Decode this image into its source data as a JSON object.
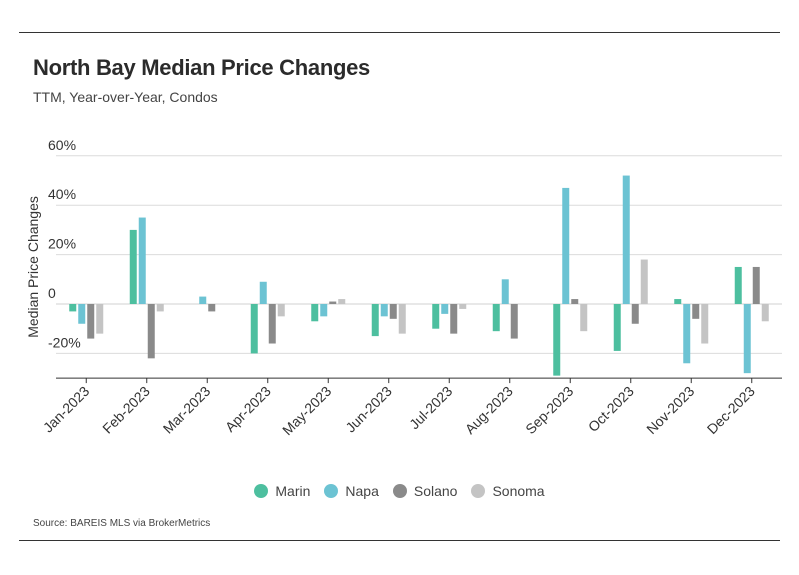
{
  "title": "North Bay Median Price Changes",
  "subtitle": "TTM, Year-over-Year, Condos",
  "source": "Source:  BAREIS MLS via BrokerMetrics",
  "chart_data": {
    "type": "bar",
    "title": "North Bay Median Price Changes",
    "subtitle": "TTM, Year-over-Year, Condos",
    "xlabel": "",
    "ylabel": "Median Price Changes",
    "ylim": [
      -30,
      60
    ],
    "yticks": [
      -20,
      0,
      20,
      40,
      60
    ],
    "ytick_labels": [
      "-20%",
      "0",
      "20%",
      "40%",
      "60%"
    ],
    "grid": true,
    "legend_position": "bottom",
    "categories": [
      "Jan-2023",
      "Feb-2023",
      "Mar-2023",
      "Apr-2023",
      "May-2023",
      "Jun-2023",
      "Jul-2023",
      "Aug-2023",
      "Sep-2023",
      "Oct-2023",
      "Nov-2023",
      "Dec-2023"
    ],
    "series": [
      {
        "name": "Marin",
        "color": "#4dbf9f",
        "values": [
          -3,
          30,
          null,
          -20,
          -7,
          -13,
          -10,
          -11,
          -29,
          -19,
          2,
          15
        ]
      },
      {
        "name": "Napa",
        "color": "#6cc3d3",
        "values": [
          -8,
          35,
          3,
          9,
          -5,
          -5,
          -4,
          10,
          47,
          52,
          -24,
          -28
        ]
      },
      {
        "name": "Solano",
        "color": "#8a8a8a",
        "values": [
          -14,
          -22,
          -3,
          -16,
          1,
          -6,
          -12,
          -14,
          2,
          -8,
          -6,
          15
        ]
      },
      {
        "name": "Sonoma",
        "color": "#c4c4c4",
        "values": [
          -12,
          -3,
          null,
          -5,
          2,
          -12,
          -2,
          null,
          -11,
          18,
          -16,
          -7
        ]
      }
    ]
  }
}
